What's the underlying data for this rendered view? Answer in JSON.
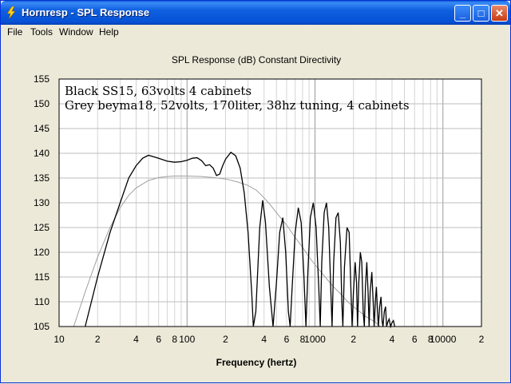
{
  "window": {
    "title": "Hornresp - SPL Response",
    "buttons": {
      "minimize": "_",
      "maximize": "□",
      "close": "✕"
    }
  },
  "menu": [
    "File",
    "Tools",
    "Window",
    "Help"
  ],
  "chart_data": {
    "type": "line",
    "title": "SPL Response (dB)   Constant Directivity",
    "xlabel": "Frequency (hertz)",
    "ylabel": "",
    "x_scale": "log",
    "xlim": [
      10,
      20000
    ],
    "ylim": [
      105,
      155
    ],
    "y_ticks": [
      105,
      110,
      115,
      120,
      125,
      130,
      135,
      140,
      145,
      150,
      155
    ],
    "x_tick_labels": [
      {
        "f": 10,
        "label": "10"
      },
      {
        "f": 20,
        "label": "2"
      },
      {
        "f": 40,
        "label": "4"
      },
      {
        "f": 60,
        "label": "6"
      },
      {
        "f": 80,
        "label": "8"
      },
      {
        "f": 100,
        "label": "100"
      },
      {
        "f": 200,
        "label": "2"
      },
      {
        "f": 400,
        "label": "4"
      },
      {
        "f": 600,
        "label": "6"
      },
      {
        "f": 800,
        "label": "8"
      },
      {
        "f": 1000,
        "label": "1000"
      },
      {
        "f": 2000,
        "label": "2"
      },
      {
        "f": 4000,
        "label": "4"
      },
      {
        "f": 6000,
        "label": "6"
      },
      {
        "f": 8000,
        "label": "8"
      },
      {
        "f": 10000,
        "label": "10000"
      },
      {
        "f": 20000,
        "label": "2"
      }
    ],
    "annotations": [
      "Black SS15, 63volts 4 cabinets",
      "Grey beyma18, 52volts, 170liter, 38hz tuning, 4 cabinets"
    ],
    "grid": true,
    "series": [
      {
        "color": "#000000",
        "points": [
          [
            16,
            105
          ],
          [
            20,
            115
          ],
          [
            25,
            124
          ],
          [
            30,
            130
          ],
          [
            35,
            135
          ],
          [
            40,
            137.5
          ],
          [
            45,
            139
          ],
          [
            50,
            139.6
          ],
          [
            60,
            139
          ],
          [
            70,
            138.4
          ],
          [
            80,
            138.2
          ],
          [
            90,
            138.3
          ],
          [
            100,
            138.6
          ],
          [
            110,
            139
          ],
          [
            120,
            139.1
          ],
          [
            130,
            138.5
          ],
          [
            140,
            137.5
          ],
          [
            150,
            137.7
          ],
          [
            160,
            137
          ],
          [
            170,
            135.5
          ],
          [
            180,
            135.8
          ],
          [
            190,
            137.5
          ],
          [
            200,
            138.8
          ],
          [
            220,
            140.2
          ],
          [
            240,
            139.5
          ],
          [
            260,
            137
          ],
          [
            280,
            132
          ],
          [
            300,
            124
          ],
          [
            320,
            112
          ],
          [
            330,
            105
          ],
          [
            345,
            108
          ],
          [
            370,
            125
          ],
          [
            390,
            130.5
          ],
          [
            410,
            126
          ],
          [
            440,
            113
          ],
          [
            470,
            105
          ],
          [
            500,
            114
          ],
          [
            530,
            124
          ],
          [
            560,
            127
          ],
          [
            590,
            120
          ],
          [
            620,
            108
          ],
          [
            640,
            105
          ],
          [
            660,
            112
          ],
          [
            700,
            124
          ],
          [
            740,
            129
          ],
          [
            780,
            126
          ],
          [
            820,
            115
          ],
          [
            850,
            105
          ],
          [
            880,
            116
          ],
          [
            920,
            127
          ],
          [
            970,
            130
          ],
          [
            1020,
            125
          ],
          [
            1070,
            113
          ],
          [
            1100,
            105
          ],
          [
            1130,
            118
          ],
          [
            1180,
            128
          ],
          [
            1230,
            130
          ],
          [
            1280,
            125
          ],
          [
            1330,
            112
          ],
          [
            1360,
            105
          ],
          [
            1400,
            118
          ],
          [
            1460,
            127
          ],
          [
            1520,
            128
          ],
          [
            1580,
            122
          ],
          [
            1620,
            110
          ],
          [
            1650,
            105
          ],
          [
            1700,
            117
          ],
          [
            1780,
            125
          ],
          [
            1850,
            124
          ],
          [
            1900,
            114
          ],
          [
            1950,
            105
          ],
          [
            2000,
            112
          ],
          [
            2060,
            118
          ],
          [
            2110,
            114
          ],
          [
            2150,
            105
          ],
          [
            2200,
            114
          ],
          [
            2260,
            120
          ],
          [
            2320,
            118
          ],
          [
            2380,
            108
          ],
          [
            2430,
            105
          ],
          [
            2480,
            113
          ],
          [
            2540,
            118
          ],
          [
            2600,
            112
          ],
          [
            2650,
            105
          ],
          [
            2700,
            112
          ],
          [
            2780,
            116
          ],
          [
            2850,
            110
          ],
          [
            2900,
            105
          ],
          [
            2960,
            110
          ],
          [
            3020,
            113
          ],
          [
            3080,
            108
          ],
          [
            3130,
            105
          ],
          [
            3200,
            109
          ],
          [
            3280,
            111
          ],
          [
            3350,
            106
          ],
          [
            3400,
            105
          ],
          [
            3480,
            108
          ],
          [
            3560,
            109
          ],
          [
            3630,
            105
          ],
          [
            3720,
            106
          ],
          [
            3800,
            106.5
          ],
          [
            3900,
            105
          ],
          [
            4000,
            105.8
          ],
          [
            4100,
            106.2
          ],
          [
            4200,
            105
          ]
        ]
      },
      {
        "color": "#a0a0a0",
        "points": [
          [
            13,
            105
          ],
          [
            16,
            112
          ],
          [
            20,
            119
          ],
          [
            25,
            125
          ],
          [
            30,
            129
          ],
          [
            35,
            131.5
          ],
          [
            40,
            133
          ],
          [
            50,
            134.5
          ],
          [
            60,
            135.1
          ],
          [
            70,
            135.3
          ],
          [
            80,
            135.4
          ],
          [
            100,
            135.4
          ],
          [
            130,
            135.3
          ],
          [
            160,
            135.1
          ],
          [
            200,
            134.8
          ],
          [
            250,
            134.2
          ],
          [
            300,
            133.5
          ],
          [
            350,
            132.5
          ],
          [
            400,
            131
          ],
          [
            450,
            129.5
          ],
          [
            500,
            128
          ],
          [
            600,
            125.5
          ],
          [
            700,
            123
          ],
          [
            800,
            121
          ],
          [
            900,
            119
          ],
          [
            1000,
            117.5
          ],
          [
            1200,
            115
          ],
          [
            1400,
            113
          ],
          [
            1600,
            111.5
          ],
          [
            1800,
            110
          ],
          [
            2000,
            109
          ],
          [
            2500,
            107
          ],
          [
            3000,
            105.8
          ],
          [
            3200,
            105
          ]
        ]
      }
    ]
  }
}
